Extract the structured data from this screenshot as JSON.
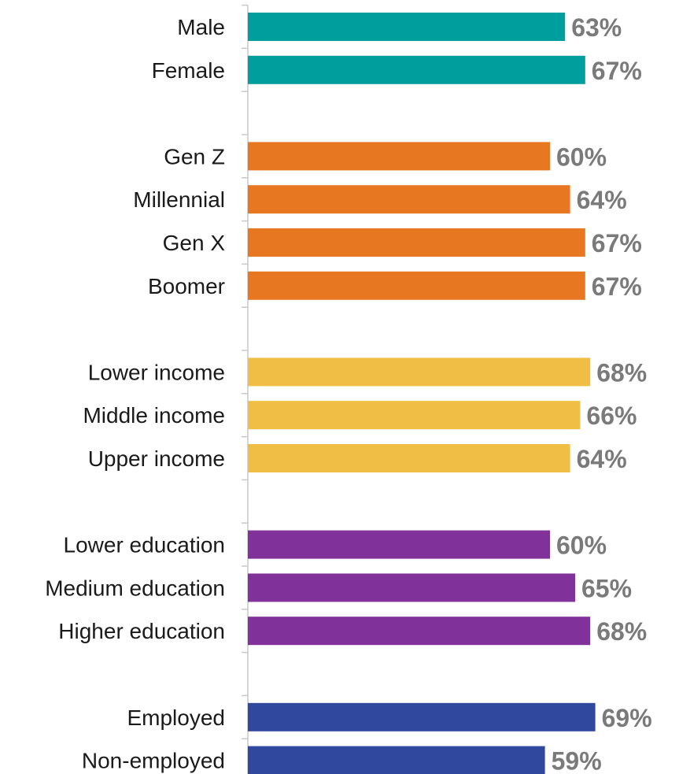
{
  "chart_data": {
    "type": "bar",
    "orientation": "horizontal",
    "title": "",
    "xlabel": "",
    "ylabel": "",
    "xlim": [
      0,
      72
    ],
    "grid": false,
    "legend": "none",
    "value_format": "percent",
    "groups": [
      {
        "color": "#009e9c",
        "items": [
          {
            "label": "Male",
            "value": 63,
            "display": "63%"
          },
          {
            "label": "Female",
            "value": 67,
            "display": "67%"
          }
        ]
      },
      {
        "color": "#e87722",
        "items": [
          {
            "label": "Gen Z",
            "value": 60,
            "display": "60%"
          },
          {
            "label": "Millennial",
            "value": 64,
            "display": "64%"
          },
          {
            "label": "Gen X",
            "value": 67,
            "display": "67%"
          },
          {
            "label": "Boomer",
            "value": 67,
            "display": "67%"
          }
        ]
      },
      {
        "color": "#f0bd45",
        "items": [
          {
            "label": "Lower income",
            "value": 68,
            "display": "68%"
          },
          {
            "label": "Middle income",
            "value": 66,
            "display": "66%"
          },
          {
            "label": "Upper income",
            "value": 64,
            "display": "64%"
          }
        ]
      },
      {
        "color": "#80329a",
        "items": [
          {
            "label": "Lower education",
            "value": 60,
            "display": "60%"
          },
          {
            "label": "Medium education",
            "value": 65,
            "display": "65%"
          },
          {
            "label": "Higher education",
            "value": 68,
            "display": "68%"
          }
        ]
      },
      {
        "color": "#30489e",
        "items": [
          {
            "label": "Employed",
            "value": 69,
            "display": "69%"
          },
          {
            "label": "Non-employed",
            "value": 59,
            "display": "59%"
          }
        ]
      }
    ]
  }
}
